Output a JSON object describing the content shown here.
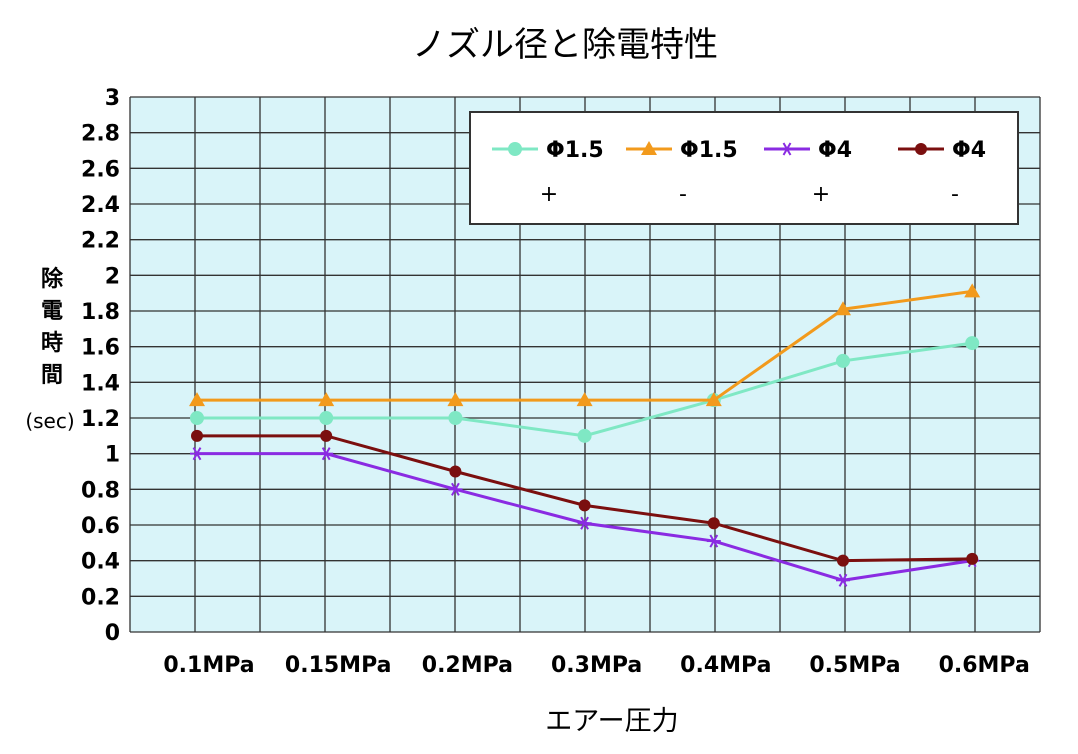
{
  "chart_data": {
    "type": "line",
    "title": "ノズル径と除電特性",
    "xlabel": "エアー圧力",
    "ylabel": [
      "除",
      "電",
      "時",
      "間"
    ],
    "ylabel_unit": "(sec)",
    "categories": [
      "0.1MPa",
      "0.15MPa",
      "0.2MPa",
      "0.3MPa",
      "0.4MPa",
      "0.5MPa",
      "0.6MPa"
    ],
    "ylim": [
      0,
      3
    ],
    "yticks": [
      "0",
      "0.2",
      "0.4",
      "0.6",
      "0.8",
      "1",
      "1.2",
      "1.4",
      "1.6",
      "1.8",
      "2",
      "2.2",
      "2.4",
      "2.6",
      "2.8",
      "3"
    ],
    "grid": true,
    "legend_position": "top-right",
    "series": [
      {
        "name": "Φ1.5",
        "sign": "+",
        "color": "#7fe8c4",
        "marker": "circle",
        "values": [
          1.2,
          1.2,
          1.2,
          1.1,
          1.3,
          1.52,
          1.62
        ]
      },
      {
        "name": "Φ1.5",
        "sign": "-",
        "color": "#f29a1c",
        "marker": "triangle",
        "values": [
          1.3,
          1.3,
          1.3,
          1.3,
          1.3,
          1.81,
          1.91
        ]
      },
      {
        "name": "Φ4",
        "sign": "+",
        "color": "#8a2be2",
        "marker": "star",
        "values": [
          1.0,
          1.0,
          0.8,
          0.61,
          0.51,
          0.29,
          0.4
        ]
      },
      {
        "name": "Φ4",
        "sign": "-",
        "color": "#7b0f0f",
        "marker": "dot",
        "values": [
          1.1,
          1.1,
          0.9,
          0.71,
          0.61,
          0.4,
          0.41
        ]
      }
    ]
  }
}
